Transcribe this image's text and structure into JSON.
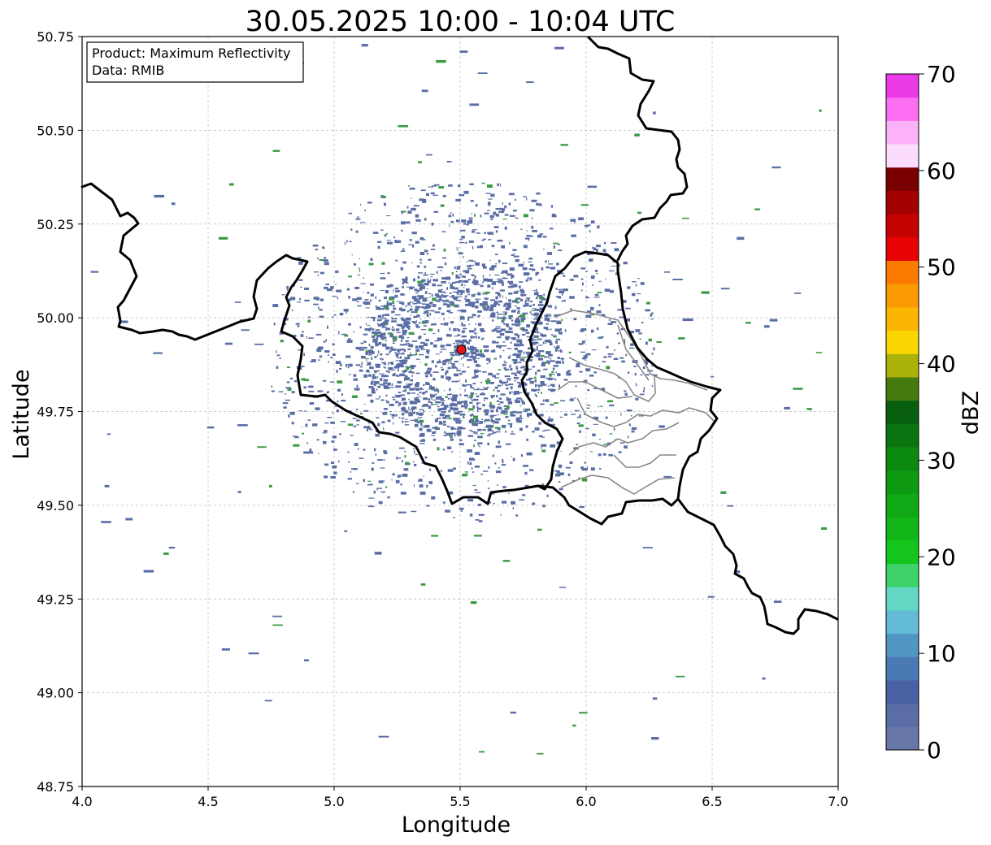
{
  "title": "30.05.2025 10:00 - 10:04 UTC",
  "info_box": {
    "product": "Product: Maximum Reflectivity",
    "data_source": "Data: RMIB"
  },
  "axes": {
    "xlabel": "Longitude",
    "ylabel": "Latitude",
    "xlim": [
      4.0,
      7.0
    ],
    "ylim": [
      48.75,
      50.75
    ],
    "xticks": [
      "4.0",
      "4.5",
      "5.0",
      "5.5",
      "6.0",
      "6.5",
      "7.0"
    ],
    "yticks": [
      "50.75",
      "50.50",
      "50.25",
      "50.00",
      "49.75",
      "49.50",
      "49.25",
      "49.00",
      "48.75"
    ],
    "grid": true
  },
  "radar_site": {
    "lon": 5.505,
    "lat": 49.915,
    "color": "#e8141c"
  },
  "colorbar": {
    "label": "dBZ",
    "ticks": [
      "0",
      "10",
      "20",
      "30",
      "40",
      "50",
      "60",
      "70"
    ],
    "range": [
      0,
      70
    ],
    "colors": [
      "#6677a8",
      "#5a6ea5",
      "#4a62a4",
      "#4a7ab4",
      "#5296c4",
      "#62bcd8",
      "#62d8c4",
      "#3ed26a",
      "#14c61c",
      "#12b618",
      "#10a814",
      "#0e9a12",
      "#0c8a10",
      "#0a7410",
      "#065e0e",
      "#447a0e",
      "#aab20a",
      "#fcd602",
      "#fcb602",
      "#fc9a02",
      "#fc7a02",
      "#e80202",
      "#c40202",
      "#a40202",
      "#780000",
      "#fcdcfc",
      "#fcb2f8",
      "#fc6ef2",
      "#ec3ae8"
    ]
  },
  "colors": {
    "echo_primary": "#5a6ea5",
    "echo_secondary": "#3a9a42",
    "border_national": "#000000",
    "border_regional": "#888888",
    "grid": "#bbbbbb"
  }
}
